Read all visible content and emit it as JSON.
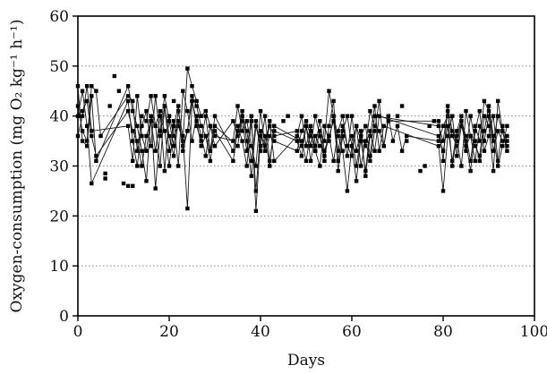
{
  "chart_data": {
    "type": "line",
    "title": "",
    "xlabel": "Days",
    "ylabel": "Oxygen-consumption (mg O₂ kg⁻¹ h⁻¹)",
    "xlim": [
      0,
      100
    ],
    "ylim": [
      0,
      60
    ],
    "x_ticks": [
      0,
      20,
      40,
      60,
      80,
      100
    ],
    "y_ticks": [
      0,
      10,
      20,
      30,
      40,
      50,
      60
    ],
    "grid": {
      "horizontal_dotted": [
        10,
        20,
        30,
        40,
        50
      ],
      "vertical": false
    },
    "legend": null,
    "series": [
      {
        "x": [
          0,
          1,
          2,
          3,
          4,
          5,
          11,
          12,
          13,
          14,
          15,
          16,
          17,
          18,
          19,
          20,
          21,
          22,
          23,
          24,
          25,
          26,
          27,
          28,
          29,
          30,
          34,
          35,
          36,
          37,
          38,
          39,
          40,
          41,
          42,
          43,
          48,
          49,
          50,
          51,
          52,
          53,
          54,
          55,
          56,
          57,
          58,
          59,
          60,
          61,
          62,
          63,
          64,
          65,
          66,
          67,
          68,
          69,
          70,
          71,
          72,
          79,
          80,
          81,
          82,
          83,
          84,
          85,
          86,
          87,
          88,
          89,
          90,
          91,
          92,
          93,
          94
        ],
        "y": [
          42,
          37,
          35,
          46,
          45,
          36,
          44,
          43,
          33,
          40,
          39,
          44,
          38,
          41,
          29,
          40,
          36,
          38,
          35,
          49.5,
          46,
          43,
          40,
          41,
          38,
          36,
          35,
          42,
          37,
          39,
          34,
          30,
          41,
          34,
          38,
          36,
          37,
          34,
          38,
          31,
          36,
          34,
          35,
          45,
          40,
          33,
          38,
          34,
          36,
          30,
          36,
          34,
          41,
          38,
          37,
          34,
          40,
          35,
          38,
          33,
          36,
          35,
          38,
          40,
          36,
          34,
          39,
          36,
          31,
          38,
          35,
          43,
          41,
          35,
          40,
          37,
          33
        ]
      },
      {
        "x": [
          0,
          1,
          2,
          3,
          4,
          11,
          12,
          13,
          14,
          15,
          16,
          17,
          18,
          19,
          20,
          21,
          22,
          23,
          24,
          25,
          26,
          27,
          28,
          29,
          30,
          34,
          35,
          36,
          37,
          38,
          39,
          40,
          41,
          42,
          43,
          48,
          49,
          50,
          51,
          52,
          53,
          54,
          55,
          56,
          57,
          58,
          59,
          60,
          61,
          62,
          63,
          64,
          65,
          66,
          67,
          68,
          79,
          80,
          81,
          82,
          83,
          84,
          85,
          86,
          87,
          88,
          89,
          90,
          91,
          92,
          93,
          94
        ],
        "y": [
          46,
          35,
          34,
          44,
          31,
          46,
          41,
          38,
          33,
          27,
          40,
          38,
          30,
          42,
          36,
          32,
          39,
          34,
          37,
          44,
          42,
          38,
          36,
          33,
          40,
          33,
          38,
          35,
          30,
          39,
          25,
          37,
          33,
          36,
          35,
          33,
          37,
          39,
          36,
          33,
          30,
          38,
          35,
          40,
          36,
          33,
          25,
          34,
          38,
          30,
          35,
          31,
          37,
          43,
          34,
          39,
          39,
          31,
          42,
          37,
          35,
          30,
          41,
          36,
          34,
          32,
          40,
          38,
          29,
          43,
          37,
          34
        ]
      },
      {
        "x": [
          0,
          1,
          2,
          3,
          11,
          12,
          13,
          14,
          15,
          16,
          17,
          18,
          19,
          20,
          21,
          22,
          23,
          24,
          25,
          26,
          27,
          28,
          29,
          30,
          34,
          35,
          36,
          37,
          38,
          39,
          40,
          41,
          42,
          43,
          48,
          49,
          50,
          51,
          52,
          53,
          54,
          55,
          56,
          57,
          58,
          59,
          60,
          61,
          62,
          63,
          64,
          65,
          66,
          67,
          79,
          80,
          81,
          82,
          83,
          84,
          85,
          86,
          87,
          88,
          89,
          90,
          91,
          92,
          93,
          94
        ],
        "y": [
          40,
          45,
          38,
          26.5,
          43,
          35,
          30,
          38,
          41,
          34,
          44,
          36,
          42,
          33,
          39,
          30,
          45,
          41,
          35,
          40,
          36,
          32,
          38,
          34,
          39,
          36,
          41,
          35,
          28,
          38,
          34,
          40,
          31,
          37,
          35,
          32,
          38,
          34,
          40,
          36,
          31,
          38,
          43,
          29,
          36,
          32,
          40,
          33,
          37,
          28,
          36,
          42,
          33,
          38,
          34,
          25,
          36,
          40,
          32,
          38,
          35,
          29,
          37,
          41,
          33,
          36,
          40,
          31,
          38,
          35
        ]
      },
      {
        "x": [
          0,
          1,
          2,
          3,
          11,
          12,
          13,
          14,
          15,
          16,
          17,
          18,
          19,
          20,
          21,
          22,
          23,
          24,
          25,
          26,
          27,
          28,
          29,
          30,
          34,
          35,
          36,
          37,
          38,
          39,
          40,
          41,
          42,
          43,
          48,
          49,
          50,
          51,
          52,
          53,
          54,
          55,
          56,
          57,
          58,
          59,
          60,
          61,
          62,
          63,
          64,
          65,
          79,
          80,
          81,
          82,
          83,
          84,
          85,
          86,
          87,
          88,
          89,
          90,
          91,
          92,
          93,
          94
        ],
        "y": [
          36,
          40,
          46,
          37,
          38,
          31,
          44,
          36,
          33,
          40,
          25.5,
          37,
          44,
          39,
          34,
          41,
          36,
          21.5,
          43,
          38,
          35,
          40,
          33,
          37,
          31,
          37,
          39,
          33,
          40,
          21,
          36,
          34,
          39,
          31,
          36,
          40,
          34,
          38,
          33,
          37,
          32,
          36,
          39,
          31,
          37,
          40,
          34,
          27,
          36,
          38,
          32,
          40,
          38,
          35,
          41,
          30,
          36,
          39,
          33,
          40,
          35,
          31,
          37,
          42,
          36,
          30,
          34,
          38
        ]
      },
      {
        "x": [
          1,
          2,
          3,
          4,
          11,
          12,
          13,
          14,
          15,
          16,
          17,
          18,
          19,
          20,
          21,
          22,
          23,
          24,
          25,
          26,
          27,
          28,
          29,
          30,
          35,
          36,
          37,
          38,
          39,
          40,
          41,
          42,
          43,
          49,
          50,
          51,
          52,
          53,
          54,
          55,
          56,
          57,
          58,
          59,
          60,
          61,
          62,
          63,
          64,
          65,
          66,
          79,
          80,
          81,
          82,
          83,
          84,
          85,
          86,
          87,
          88,
          89,
          90,
          91,
          92,
          93,
          94
        ],
        "y": [
          41,
          43,
          36,
          32,
          41,
          37,
          35,
          30,
          36,
          39,
          33,
          40,
          37,
          30,
          38,
          42,
          33,
          37,
          43,
          39,
          34,
          36,
          31,
          38,
          34,
          40,
          37,
          31,
          39,
          33,
          36,
          30,
          38,
          35,
          31,
          37,
          34,
          39,
          33,
          36,
          31,
          37,
          40,
          34,
          32,
          38,
          35,
          29,
          37,
          33,
          40,
          36,
          33,
          38,
          31,
          37,
          40,
          34,
          36,
          31,
          38,
          35,
          40,
          33,
          37,
          35,
          36
        ]
      }
    ],
    "isolated_points": {
      "x": [
        6,
        6,
        7,
        8,
        9,
        10,
        11,
        12,
        21,
        43,
        45,
        46,
        70,
        71,
        72,
        75,
        76,
        77,
        78
      ],
      "y": [
        28.5,
        27.5,
        42,
        48,
        45,
        26.5,
        26,
        26,
        43,
        38,
        39,
        40,
        40,
        42,
        35,
        29,
        30,
        38,
        39
      ]
    }
  },
  "colors": {
    "line": "#1a1a1a",
    "marker": "#000000",
    "grid": "#888888",
    "axis": "#000000"
  }
}
